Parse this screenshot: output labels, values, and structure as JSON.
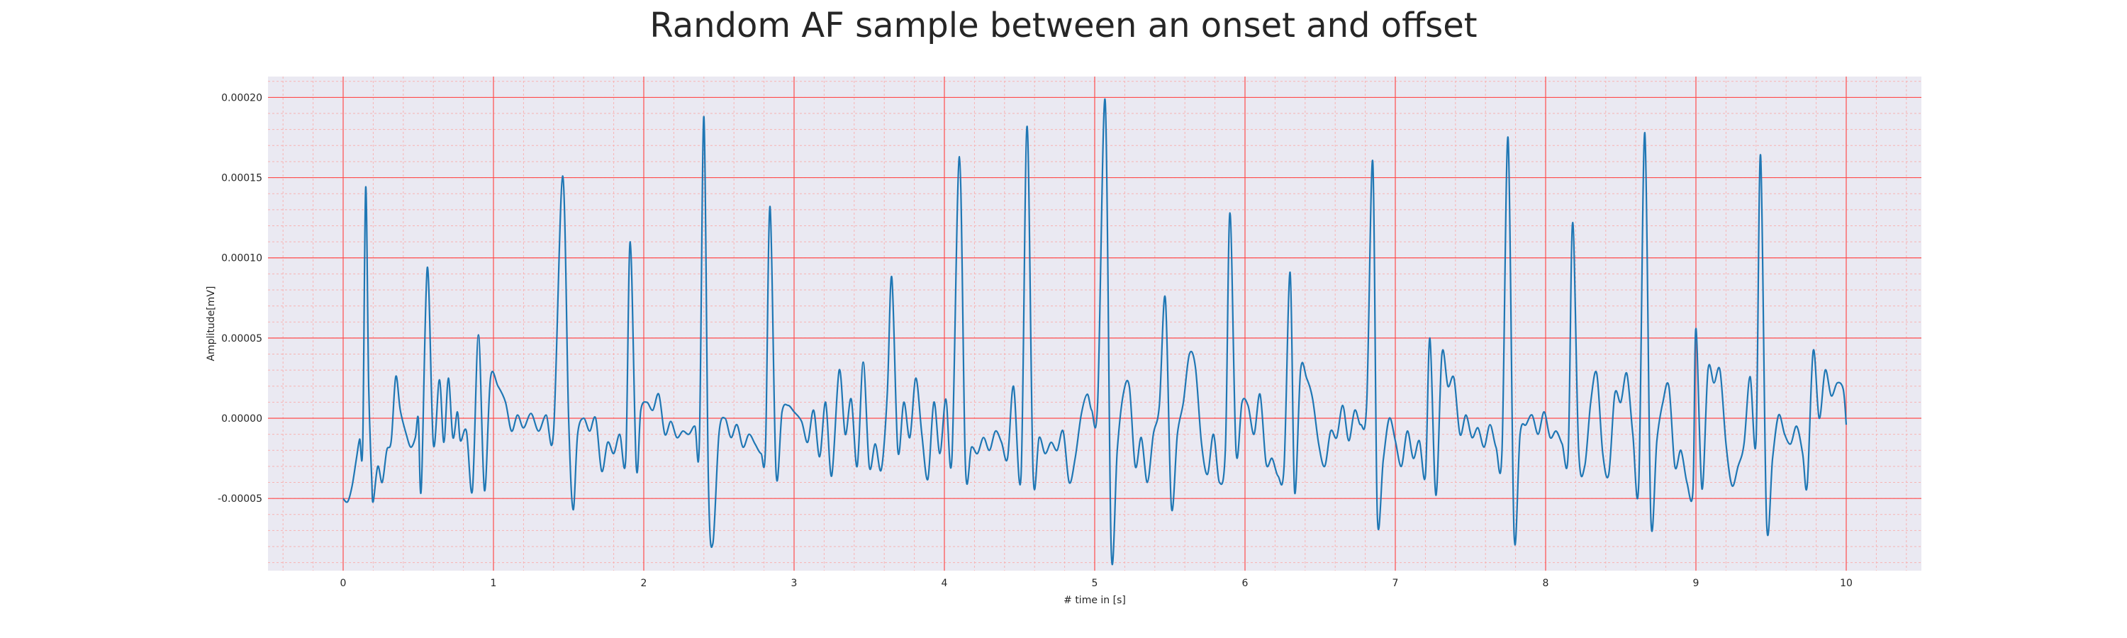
{
  "chart_data": {
    "type": "line",
    "title": "Random AF sample between an onset and offset",
    "xlabel": "# time in [s]",
    "ylabel": "Amplitude[mV]",
    "xlim": [
      -0.5,
      10.5
    ],
    "ylim": [
      -9.5e-05,
      0.000213
    ],
    "xticks": [
      0,
      1,
      2,
      3,
      4,
      5,
      6,
      7,
      8,
      9,
      10
    ],
    "xtick_labels": [
      "0",
      "1",
      "2",
      "3",
      "4",
      "5",
      "6",
      "7",
      "8",
      "9",
      "10"
    ],
    "yticks": [
      -5e-05,
      0,
      5e-05,
      0.0001,
      0.00015,
      0.0002
    ],
    "ytick_labels": [
      "-0.00005",
      "0.00000",
      "0.00005",
      "0.00010",
      "0.00015",
      "0.00020"
    ],
    "grid": true,
    "minor_grid": true,
    "colors": {
      "line": "#1f77b4",
      "major_grid": "#ff4d4d",
      "minor_grid": "#f7b3b3",
      "plot_background": "#eae9f2"
    },
    "series": [
      {
        "values": [
          [
            0.0,
            -5e-05
          ],
          [
            0.03,
            -5.2e-05
          ],
          [
            0.06,
            -4.2e-05
          ],
          [
            0.09,
            -2.4e-05
          ],
          [
            0.11,
            -1.3e-05
          ],
          [
            0.13,
            -1.6e-05
          ],
          [
            0.15,
            0.000144
          ],
          [
            0.17,
            2e-05
          ],
          [
            0.19,
            -3.8e-05
          ],
          [
            0.2,
            -5.2e-05
          ],
          [
            0.23,
            -3e-05
          ],
          [
            0.26,
            -4e-05
          ],
          [
            0.29,
            -2e-05
          ],
          [
            0.32,
            -1.4e-05
          ],
          [
            0.35,
            2.6e-05
          ],
          [
            0.38,
            5e-06
          ],
          [
            0.42,
            -1e-05
          ],
          [
            0.45,
            -1.8e-05
          ],
          [
            0.48,
            -1.2e-05
          ],
          [
            0.5,
            0.0
          ],
          [
            0.52,
            -4.4e-05
          ],
          [
            0.56,
            9.4e-05
          ],
          [
            0.6,
            -1.6e-05
          ],
          [
            0.64,
            2.4e-05
          ],
          [
            0.67,
            -1.5e-05
          ],
          [
            0.7,
            2.5e-05
          ],
          [
            0.73,
            -1.2e-05
          ],
          [
            0.76,
            4e-06
          ],
          [
            0.78,
            -1.4e-05
          ],
          [
            0.82,
            -8e-06
          ],
          [
            0.86,
            -4.5e-05
          ],
          [
            0.9,
            5.2e-05
          ],
          [
            0.94,
            -4.5e-05
          ],
          [
            0.98,
            2.5e-05
          ],
          [
            1.03,
            2e-05
          ],
          [
            1.08,
            1e-05
          ],
          [
            1.12,
            -8e-06
          ],
          [
            1.16,
            2e-06
          ],
          [
            1.2,
            -6e-06
          ],
          [
            1.25,
            3e-06
          ],
          [
            1.3,
            -8e-06
          ],
          [
            1.35,
            2e-06
          ],
          [
            1.4,
            -8e-06
          ],
          [
            1.46,
            0.000151
          ],
          [
            1.5,
            0.0
          ],
          [
            1.53,
            -5.7e-05
          ],
          [
            1.56,
            -1e-05
          ],
          [
            1.6,
            0.0
          ],
          [
            1.64,
            -8e-06
          ],
          [
            1.68,
            0.0
          ],
          [
            1.72,
            -3.3e-05
          ],
          [
            1.76,
            -1.5e-05
          ],
          [
            1.8,
            -2.2e-05
          ],
          [
            1.84,
            -1e-05
          ],
          [
            1.88,
            -2.5e-05
          ],
          [
            1.91,
            0.00011
          ],
          [
            1.95,
            -3e-05
          ],
          [
            1.98,
            5e-06
          ],
          [
            2.02,
            1e-05
          ],
          [
            2.06,
            5e-06
          ],
          [
            2.1,
            1.5e-05
          ],
          [
            2.14,
            -1e-05
          ],
          [
            2.18,
            -2e-06
          ],
          [
            2.22,
            -1.2e-05
          ],
          [
            2.26,
            -8e-06
          ],
          [
            2.3,
            -1e-05
          ],
          [
            2.34,
            -5e-06
          ],
          [
            2.37,
            -1.5e-05
          ],
          [
            2.4,
            0.000188
          ],
          [
            2.43,
            -4e-05
          ],
          [
            2.46,
            -7.8e-05
          ],
          [
            2.5,
            -1e-05
          ],
          [
            2.54,
            0.0
          ],
          [
            2.58,
            -1.2e-05
          ],
          [
            2.62,
            -4e-06
          ],
          [
            2.66,
            -1.8e-05
          ],
          [
            2.7,
            -1e-05
          ],
          [
            2.74,
            -1.6e-05
          ],
          [
            2.78,
            -2.2e-05
          ],
          [
            2.81,
            -1.8e-05
          ],
          [
            2.84,
            0.000132
          ],
          [
            2.88,
            -3.4e-05
          ],
          [
            2.92,
            4e-06
          ],
          [
            2.96,
            8e-06
          ],
          [
            3.0,
            4e-06
          ],
          [
            3.05,
            -2e-06
          ],
          [
            3.09,
            -1.5e-05
          ],
          [
            3.13,
            5e-06
          ],
          [
            3.17,
            -2.4e-05
          ],
          [
            3.21,
            1e-05
          ],
          [
            3.25,
            -3.6e-05
          ],
          [
            3.3,
            3e-05
          ],
          [
            3.34,
            -1e-05
          ],
          [
            3.38,
            1.2e-05
          ],
          [
            3.42,
            -3e-05
          ],
          [
            3.46,
            3.5e-05
          ],
          [
            3.5,
            -3e-05
          ],
          [
            3.54,
            -1.6e-05
          ],
          [
            3.58,
            -3.2e-05
          ],
          [
            3.62,
            1.5e-05
          ],
          [
            3.65,
            8.8e-05
          ],
          [
            3.69,
            -2e-05
          ],
          [
            3.73,
            1e-05
          ],
          [
            3.77,
            -1.2e-05
          ],
          [
            3.81,
            2.5e-05
          ],
          [
            3.85,
            -1e-05
          ],
          [
            3.89,
            -3.8e-05
          ],
          [
            3.93,
            1e-05
          ],
          [
            3.97,
            -2.2e-05
          ],
          [
            4.01,
            1.2e-05
          ],
          [
            4.05,
            -2.5e-05
          ],
          [
            4.1,
            0.000163
          ],
          [
            4.14,
            -3e-05
          ],
          [
            4.18,
            -1.8e-05
          ],
          [
            4.22,
            -2.2e-05
          ],
          [
            4.26,
            -1.2e-05
          ],
          [
            4.3,
            -2e-05
          ],
          [
            4.34,
            -8e-06
          ],
          [
            4.38,
            -1.5e-05
          ],
          [
            4.42,
            -2.5e-05
          ],
          [
            4.46,
            2e-05
          ],
          [
            4.51,
            -3.6e-05
          ],
          [
            4.55,
            0.000182
          ],
          [
            4.59,
            -3.4e-05
          ],
          [
            4.63,
            -1.2e-05
          ],
          [
            4.67,
            -2.2e-05
          ],
          [
            4.71,
            -1.5e-05
          ],
          [
            4.75,
            -2e-05
          ],
          [
            4.79,
            -8e-06
          ],
          [
            4.83,
            -4e-05
          ],
          [
            4.87,
            -2.5e-05
          ],
          [
            4.91,
            2e-06
          ],
          [
            4.95,
            1.5e-05
          ],
          [
            4.98,
            5e-06
          ],
          [
            5.02,
            1e-05
          ],
          [
            5.07,
            0.000198
          ],
          [
            5.11,
            -8.2e-05
          ],
          [
            5.15,
            -2e-05
          ],
          [
            5.19,
            1.5e-05
          ],
          [
            5.23,
            2e-05
          ],
          [
            5.27,
            -3e-05
          ],
          [
            5.31,
            -1.2e-05
          ],
          [
            5.35,
            -4e-05
          ],
          [
            5.39,
            -1e-05
          ],
          [
            5.43,
            8e-06
          ],
          [
            5.47,
            7.5e-05
          ],
          [
            5.51,
            -5.5e-05
          ],
          [
            5.55,
            -1e-05
          ],
          [
            5.59,
            1e-05
          ],
          [
            5.63,
            4e-05
          ],
          [
            5.67,
            3.2e-05
          ],
          [
            5.71,
            -1.5e-05
          ],
          [
            5.75,
            -3.5e-05
          ],
          [
            5.79,
            -1e-05
          ],
          [
            5.83,
            -4e-05
          ],
          [
            5.87,
            -1.8e-05
          ],
          [
            5.9,
            0.000128
          ],
          [
            5.94,
            -2e-05
          ],
          [
            5.98,
            1e-05
          ],
          [
            6.02,
            8e-06
          ],
          [
            6.06,
            -1e-05
          ],
          [
            6.1,
            1.5e-05
          ],
          [
            6.14,
            -2.8e-05
          ],
          [
            6.18,
            -2.5e-05
          ],
          [
            6.22,
            -3.6e-05
          ],
          [
            6.26,
            -3e-05
          ],
          [
            6.3,
            9.1e-05
          ],
          [
            6.33,
            -4.6e-05
          ],
          [
            6.37,
            3e-05
          ],
          [
            6.41,
            2.5e-05
          ],
          [
            6.45,
            1.2e-05
          ],
          [
            6.49,
            -1.6e-05
          ],
          [
            6.53,
            -3e-05
          ],
          [
            6.57,
            -8e-06
          ],
          [
            6.61,
            -1.2e-05
          ],
          [
            6.65,
            8e-06
          ],
          [
            6.69,
            -1.4e-05
          ],
          [
            6.73,
            5e-06
          ],
          [
            6.77,
            -4e-06
          ],
          [
            6.81,
            1e-05
          ],
          [
            6.85,
            0.00016
          ],
          [
            6.88,
            -6e-05
          ],
          [
            6.92,
            -2.6e-05
          ],
          [
            6.96,
            0.0
          ],
          [
            7.0,
            -1.4e-05
          ],
          [
            7.04,
            -3e-05
          ],
          [
            7.08,
            -8e-06
          ],
          [
            7.12,
            -2.5e-05
          ],
          [
            7.16,
            -1.4e-05
          ],
          [
            7.2,
            -3.6e-05
          ],
          [
            7.23,
            5e-05
          ],
          [
            7.27,
            -4.8e-05
          ],
          [
            7.31,
            4e-05
          ],
          [
            7.35,
            2e-05
          ],
          [
            7.39,
            2.5e-05
          ],
          [
            7.43,
            -1e-05
          ],
          [
            7.47,
            2e-06
          ],
          [
            7.51,
            -1.2e-05
          ],
          [
            7.55,
            -6e-06
          ],
          [
            7.59,
            -1.8e-05
          ],
          [
            7.63,
            -4e-06
          ],
          [
            7.67,
            -1.8e-05
          ],
          [
            7.71,
            -2e-05
          ],
          [
            7.75,
            0.000175
          ],
          [
            7.79,
            -7.2e-05
          ],
          [
            7.83,
            -1e-05
          ],
          [
            7.87,
            -4e-06
          ],
          [
            7.91,
            2e-06
          ],
          [
            7.95,
            -1e-05
          ],
          [
            7.99,
            4e-06
          ],
          [
            8.03,
            -1.2e-05
          ],
          [
            8.07,
            -8e-06
          ],
          [
            8.11,
            -1.6e-05
          ],
          [
            8.15,
            -2.2e-05
          ],
          [
            8.18,
            0.000122
          ],
          [
            8.22,
            -2e-05
          ],
          [
            8.26,
            -3e-05
          ],
          [
            8.3,
            1e-05
          ],
          [
            8.34,
            2.8e-05
          ],
          [
            8.38,
            -2.2e-05
          ],
          [
            8.42,
            -3.5e-05
          ],
          [
            8.46,
            1.5e-05
          ],
          [
            8.5,
            1e-05
          ],
          [
            8.54,
            2.8e-05
          ],
          [
            8.58,
            -1e-05
          ],
          [
            8.62,
            -4e-05
          ],
          [
            8.66,
            0.000178
          ],
          [
            8.7,
            -6.2e-05
          ],
          [
            8.74,
            -1.4e-05
          ],
          [
            8.78,
            1e-05
          ],
          [
            8.82,
            2e-05
          ],
          [
            8.86,
            -3e-05
          ],
          [
            8.9,
            -2e-05
          ],
          [
            8.94,
            -4e-05
          ],
          [
            8.98,
            -4.5e-05
          ],
          [
            9.0,
            5.6e-05
          ],
          [
            9.04,
            -4.4e-05
          ],
          [
            9.08,
            3e-05
          ],
          [
            9.12,
            2.2e-05
          ],
          [
            9.16,
            3e-05
          ],
          [
            9.2,
            -1.6e-05
          ],
          [
            9.24,
            -4.2e-05
          ],
          [
            9.28,
            -3e-05
          ],
          [
            9.32,
            -1.6e-05
          ],
          [
            9.36,
            2.6e-05
          ],
          [
            9.4,
            -1.4e-05
          ],
          [
            9.43,
            0.000164
          ],
          [
            9.47,
            -6.4e-05
          ],
          [
            9.51,
            -2.5e-05
          ],
          [
            9.55,
            2e-06
          ],
          [
            9.59,
            -1e-05
          ],
          [
            9.63,
            -1.6e-05
          ],
          [
            9.67,
            -5e-06
          ],
          [
            9.71,
            -2.2e-05
          ],
          [
            9.74,
            -4.2e-05
          ],
          [
            9.78,
            4.2e-05
          ],
          [
            9.82,
            0.0
          ],
          [
            9.86,
            3e-05
          ],
          [
            9.9,
            1.4e-05
          ],
          [
            9.94,
            2.2e-05
          ],
          [
            9.98,
            1.8e-05
          ],
          [
            10.0,
            -4e-06
          ]
        ]
      }
    ]
  }
}
